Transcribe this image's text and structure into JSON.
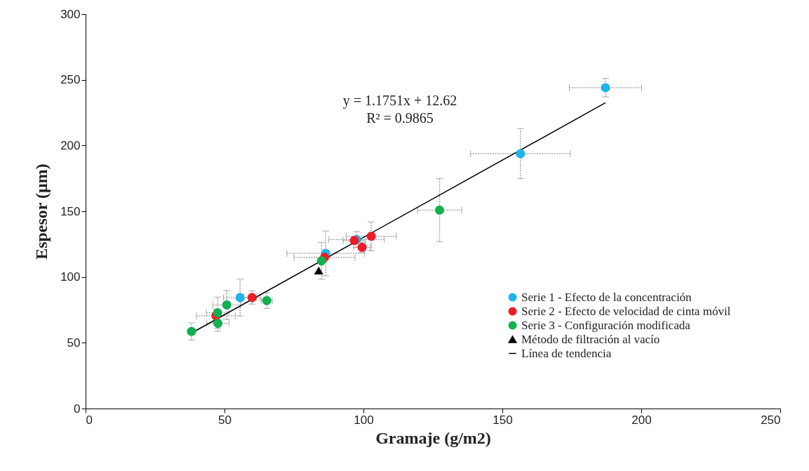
{
  "chart_data": {
    "type": "scatter",
    "xlabel": "Gramaje (g/m2)",
    "ylabel": "Espesor (µm)",
    "xlim": [
      0,
      250
    ],
    "ylim": [
      0,
      300
    ],
    "xticks": [
      0,
      50,
      100,
      150,
      200,
      250
    ],
    "yticks": [
      0,
      50,
      100,
      150,
      200,
      250,
      300
    ],
    "grid": false,
    "legend": "bottom right",
    "annotations": [
      "y = 1.1751x + 12.62",
      "R² = 0.9865"
    ],
    "series": [
      {
        "name": "Serie 1 - Efecto de la concentración",
        "color": "#1fb4ec",
        "marker": "circle",
        "x": [
          55.6,
          86.4,
          97.5,
          156.5,
          187.1
        ],
        "values": [
          84.4,
          118,
          128.5,
          193.8,
          244
        ],
        "errors": [
          14,
          17,
          6,
          19,
          7
        ],
        "xerrors": [
          6,
          14,
          10,
          18,
          13
        ]
      },
      {
        "name": "Serie 2 - Efecto de velocidad de cinta móvil",
        "color": "#ee1c25",
        "marker": "circle",
        "x": [
          46.9,
          59.9,
          86.0,
          96.7,
          99.5,
          102.8
        ],
        "values": [
          70.5,
          84.4,
          115,
          127.8,
          122.6,
          131
        ],
        "errors": [
          5,
          5,
          4,
          null,
          4,
          11
        ],
        "xerrors": [
          7,
          3,
          11,
          4,
          3,
          9
        ]
      },
      {
        "name": "Serie 3 - Configuración modificada",
        "color": "#13b04f",
        "marker": "circle",
        "x": [
          38.1,
          47.5,
          47.6,
          50.8,
          65.2,
          84.9,
          127.4
        ],
        "values": [
          58.6,
          72.8,
          64.8,
          78.8,
          82.1,
          112.3,
          150.9
        ],
        "errors": [
          6.5,
          12,
          6,
          11,
          6,
          14,
          24
        ],
        "xerrors": [
          null,
          4,
          4,
          5,
          2,
          null,
          8
        ]
      },
      {
        "name": "Método de filtración al vacío",
        "color": "#000000",
        "marker": "triangle",
        "x": [
          83.9
        ],
        "values": [
          105
        ]
      },
      {
        "name": "Línea de tendencia",
        "type": "line",
        "color": "#000000",
        "x": [
          38.1,
          187.1
        ],
        "values": [
          57.4,
          232.5
        ]
      }
    ]
  }
}
